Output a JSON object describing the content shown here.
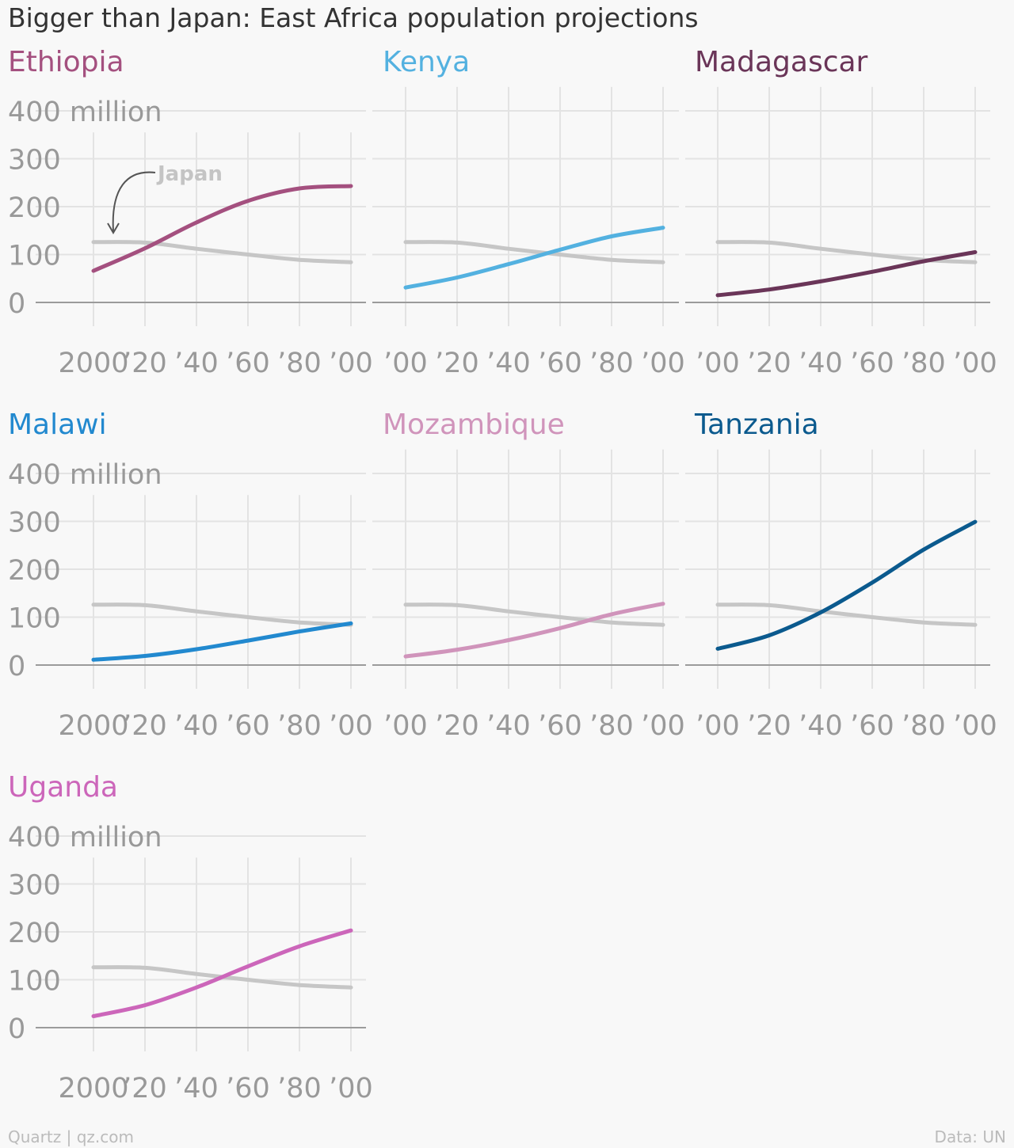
{
  "title": "Bigger than Japan: East Africa population projections",
  "footer": {
    "source_left": "Quartz | qz.com",
    "source_right": "Data: UN"
  },
  "annotation": "Japan",
  "colors": {
    "japan": "#c6c6c6",
    "Ethiopia": "#a4507f",
    "Kenya": "#53b1e0",
    "Madagascar": "#6a3558",
    "Malawi": "#2289cf",
    "Mozambique": "#d094bb",
    "Tanzania": "#0b5a8e",
    "Uganda": "#cc66ba",
    "grid": "#e3e3e3",
    "baseline": "#9b9b9b"
  },
  "chart_data": {
    "type": "line",
    "x": [
      2000,
      2020,
      2040,
      2060,
      2080,
      2100
    ],
    "xticks_first": [
      "2000",
      "’20",
      "’40",
      "’60",
      "’80",
      "’00"
    ],
    "xticks_other": [
      "’00",
      "’20",
      "’40",
      "’60",
      "’80",
      "’00"
    ],
    "yticks": [
      "0",
      "100",
      "200",
      "300",
      "400 million"
    ],
    "ylim": [
      0,
      400
    ],
    "reference": {
      "name": "Japan",
      "values": [
        126,
        125,
        112,
        100,
        89,
        84
      ]
    },
    "panels": [
      {
        "name": "Ethiopia",
        "values": [
          66,
          113,
          167,
          212,
          238,
          243
        ]
      },
      {
        "name": "Kenya",
        "values": [
          31,
          52,
          80,
          110,
          138,
          156
        ]
      },
      {
        "name": "Madagascar",
        "values": [
          15,
          27,
          44,
          64,
          86,
          105
        ]
      },
      {
        "name": "Malawi",
        "values": [
          11,
          19,
          33,
          51,
          70,
          87
        ]
      },
      {
        "name": "Mozambique",
        "values": [
          18,
          32,
          52,
          77,
          106,
          128
        ]
      },
      {
        "name": "Tanzania",
        "values": [
          34,
          62,
          110,
          172,
          241,
          299
        ]
      },
      {
        "name": "Uganda",
        "values": [
          24,
          47,
          84,
          128,
          170,
          203
        ]
      }
    ]
  }
}
